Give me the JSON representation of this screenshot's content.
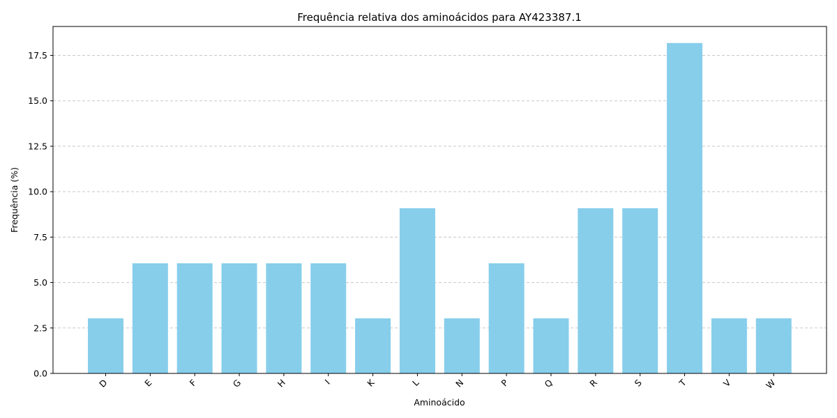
{
  "chart_data": {
    "type": "bar",
    "title": "Frequência relativa dos aminoácidos para AY423387.1",
    "xlabel": "Aminoácido",
    "ylabel": "Frequência (%)",
    "categories": [
      "D",
      "E",
      "F",
      "G",
      "H",
      "I",
      "K",
      "L",
      "N",
      "P",
      "Q",
      "R",
      "S",
      "T",
      "V",
      "W"
    ],
    "values": [
      3.03,
      6.06,
      6.06,
      6.06,
      6.06,
      6.06,
      3.03,
      9.09,
      3.03,
      6.06,
      3.03,
      9.09,
      9.09,
      18.18,
      3.03,
      3.03
    ],
    "yticks": [
      "0.0",
      "2.5",
      "5.0",
      "7.5",
      "10.0",
      "12.5",
      "15.0",
      "17.5"
    ],
    "ylim": [
      0,
      19.09
    ],
    "grid": "y-axis dashed",
    "bar_color": "#87ceeb",
    "grid_color": "#c8c8c8",
    "axis_color": "#000000"
  }
}
